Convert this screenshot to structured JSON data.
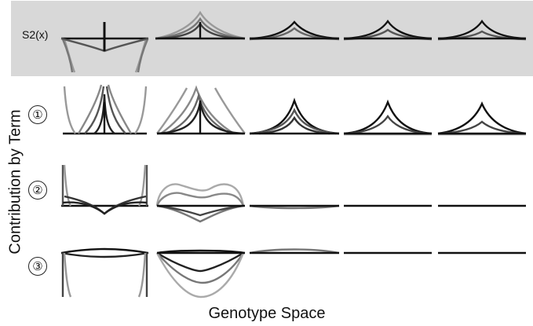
{
  "figure": {
    "row_labels": {
      "row0": "S2(x)",
      "row1": "①",
      "row2": "②",
      "row3": "③"
    },
    "y_axis_title": "Contribution by Term",
    "x_axis_title": "Genotype Space",
    "highlight_band_color": "#d8d8d8",
    "line_colors": [
      "#111111",
      "#555555",
      "#999999"
    ]
  }
}
